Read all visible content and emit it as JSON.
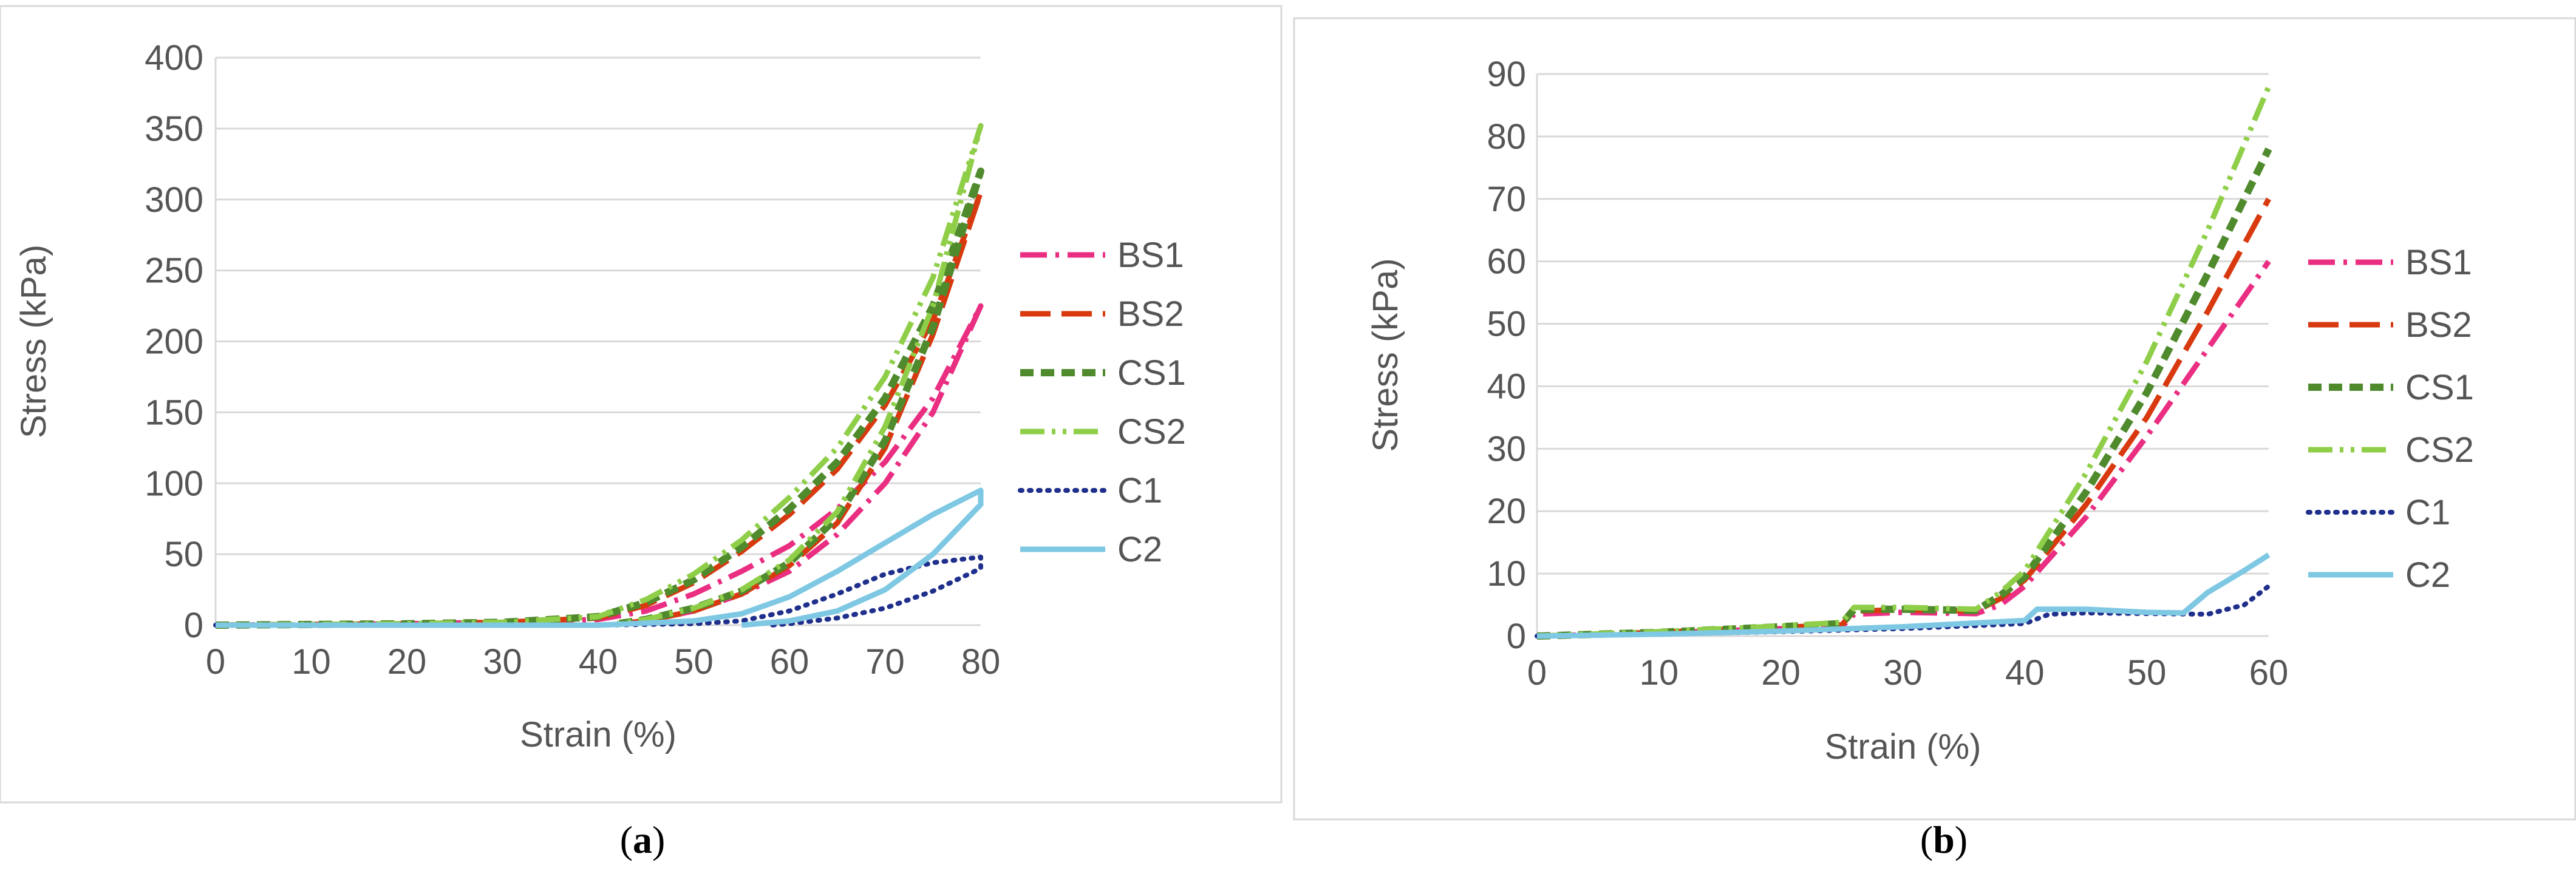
{
  "chart_data": [
    {
      "type": "line",
      "caption_open": "(",
      "caption_letter": "a",
      "caption_close": ")",
      "xlabel": "Strain (%)",
      "ylabel": "Stress (kPa)",
      "xlim": [
        0,
        80
      ],
      "ylim": [
        0,
        400
      ],
      "xticks": [
        0,
        10,
        20,
        30,
        40,
        50,
        60,
        70,
        80
      ],
      "yticks": [
        0,
        50,
        100,
        150,
        200,
        250,
        300,
        350,
        400
      ],
      "grid": "horizontal",
      "legend_position": "right",
      "series": [
        {
          "name": "BS1",
          "color": "#ea2e82",
          "dash": "dash-dot",
          "x": [
            0,
            20,
            30,
            40,
            45,
            50,
            55,
            60,
            65,
            70,
            75,
            80,
            80,
            75,
            70,
            65,
            60,
            55,
            50,
            45,
            42
          ],
          "y": [
            0,
            1,
            2,
            4,
            10,
            22,
            38,
            56,
            82,
            115,
            160,
            225,
            225,
            150,
            100,
            64,
            38,
            22,
            10,
            3,
            1
          ]
        },
        {
          "name": "BS2",
          "color": "#d8390f",
          "dash": "long-dash",
          "x": [
            0,
            20,
            30,
            40,
            45,
            50,
            55,
            60,
            65,
            70,
            75,
            80,
            80,
            75,
            70,
            65,
            60,
            55,
            50,
            45,
            42
          ],
          "y": [
            0,
            1,
            2,
            5,
            14,
            30,
            52,
            78,
            110,
            155,
            215,
            305,
            305,
            205,
            125,
            72,
            42,
            22,
            10,
            3,
            1
          ]
        },
        {
          "name": "CS1",
          "color": "#4f8a2d",
          "dash": "short-dash",
          "x": [
            0,
            20,
            30,
            40,
            45,
            50,
            55,
            60,
            65,
            70,
            75,
            80,
            80,
            75,
            70,
            65,
            60,
            55,
            50,
            45,
            42
          ],
          "y": [
            0,
            1,
            2,
            6,
            16,
            32,
            55,
            82,
            115,
            160,
            225,
            320,
            320,
            210,
            130,
            76,
            44,
            24,
            12,
            4,
            1
          ]
        },
        {
          "name": "CS2",
          "color": "#8fce48",
          "dash": "dash-dot-dot",
          "x": [
            0,
            20,
            30,
            40,
            45,
            50,
            55,
            60,
            65,
            70,
            75,
            80,
            80,
            75,
            70,
            65,
            60,
            55,
            50,
            45,
            42
          ],
          "y": [
            0,
            1,
            2,
            6,
            18,
            36,
            60,
            90,
            125,
            175,
            245,
            352,
            352,
            225,
            140,
            80,
            46,
            25,
            12,
            4,
            1
          ]
        },
        {
          "name": "C1",
          "color": "#1f2f8c",
          "dash": "dotted",
          "x": [
            0,
            40,
            50,
            55,
            60,
            65,
            70,
            75,
            80,
            80,
            75,
            70,
            65,
            60,
            58
          ],
          "y": [
            0,
            0,
            1,
            3,
            10,
            22,
            36,
            44,
            48,
            40,
            24,
            12,
            5,
            1,
            0
          ]
        },
        {
          "name": "C2",
          "color": "#7ec8e3",
          "dash": "solid",
          "x": [
            0,
            40,
            50,
            55,
            60,
            65,
            70,
            75,
            80,
            80,
            75,
            70,
            65,
            60,
            55
          ],
          "y": [
            0,
            0,
            3,
            8,
            20,
            38,
            58,
            78,
            95,
            85,
            50,
            25,
            10,
            3,
            0
          ]
        }
      ]
    },
    {
      "type": "line",
      "caption_open": "(",
      "caption_letter": "b",
      "caption_close": ")",
      "xlabel": "Strain (%)",
      "ylabel": "Stress (kPa)",
      "xlim": [
        0,
        60
      ],
      "ylim": [
        0,
        90
      ],
      "xticks": [
        0,
        10,
        20,
        30,
        40,
        50,
        60
      ],
      "yticks": [
        0,
        10,
        20,
        30,
        40,
        50,
        60,
        70,
        80,
        90
      ],
      "grid": "horizontal",
      "legend_position": "right",
      "series": [
        {
          "name": "BS1",
          "color": "#ea2e82",
          "dash": "dash-dot",
          "x": [
            0,
            10,
            20,
            25,
            26,
            30,
            36,
            38,
            40,
            45,
            50,
            55,
            60
          ],
          "y": [
            0,
            0.5,
            1.2,
            1.5,
            3.5,
            3.8,
            3.6,
            5,
            8,
            19,
            32,
            46,
            60
          ]
        },
        {
          "name": "BS2",
          "color": "#d8390f",
          "dash": "long-dash",
          "x": [
            0,
            10,
            20,
            25,
            26,
            30,
            36,
            38,
            40,
            45,
            50,
            55,
            60
          ],
          "y": [
            0,
            0.6,
            1.4,
            1.8,
            4,
            4.2,
            4,
            6,
            9,
            21,
            35,
            52,
            70
          ]
        },
        {
          "name": "CS1",
          "color": "#4f8a2d",
          "dash": "short-dash",
          "x": [
            0,
            10,
            20,
            25,
            26,
            30,
            36,
            38,
            40,
            45,
            50,
            55,
            60
          ],
          "y": [
            0,
            0.6,
            1.5,
            2,
            4.3,
            4.3,
            4.1,
            6.5,
            9.5,
            23,
            39,
            58,
            78
          ]
        },
        {
          "name": "CS2",
          "color": "#8fce48",
          "dash": "dash-dot-dot",
          "x": [
            0,
            10,
            20,
            25,
            26,
            30,
            36,
            38,
            40,
            45,
            50,
            55,
            60
          ],
          "y": [
            0,
            0.7,
            1.6,
            2.2,
            4.6,
            4.6,
            4.3,
            7,
            10.5,
            26,
            44,
            65,
            88
          ]
        },
        {
          "name": "C1",
          "color": "#1f2f8c",
          "dash": "dotted",
          "x": [
            0,
            10,
            20,
            30,
            40,
            42,
            45,
            50,
            55,
            58,
            60
          ],
          "y": [
            0,
            0.3,
            0.7,
            1.2,
            2,
            3.5,
            3.7,
            3.6,
            3.5,
            5,
            8
          ]
        },
        {
          "name": "C2",
          "color": "#7ec8e3",
          "dash": "solid",
          "x": [
            0,
            10,
            20,
            30,
            40,
            41,
            45,
            50,
            53,
            55,
            58,
            60
          ],
          "y": [
            0,
            0.3,
            0.8,
            1.5,
            2.5,
            4.3,
            4.3,
            3.8,
            3.7,
            7,
            10.5,
            13
          ]
        }
      ]
    }
  ]
}
